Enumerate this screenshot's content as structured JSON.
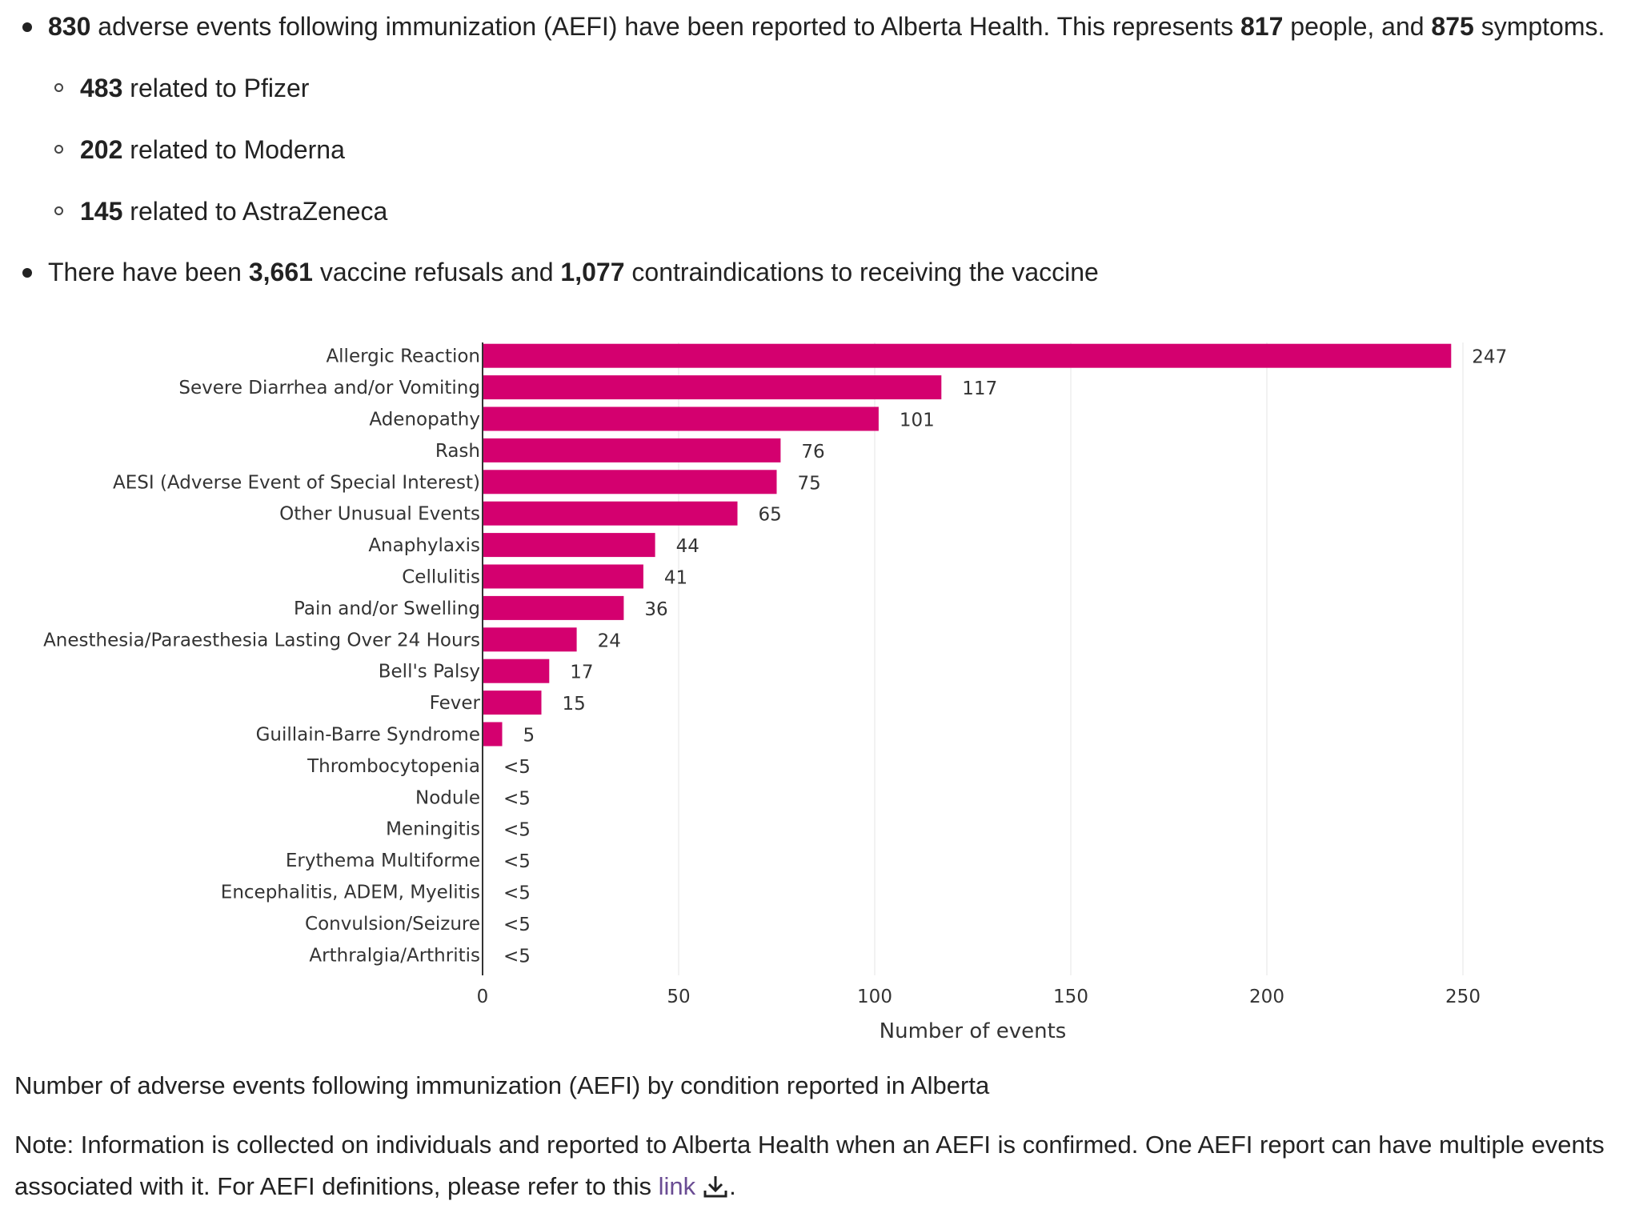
{
  "summary": {
    "line1": {
      "n_events": "830",
      "text_a": " adverse events following immunization (AEFI) have been reported to Alberta Health. This represents ",
      "n_people": "817",
      "text_b": " people, and ",
      "n_symptoms": "875",
      "text_c": " symptoms."
    },
    "sub_items": [
      {
        "count": "483",
        "text": " related to Pfizer"
      },
      {
        "count": "202",
        "text": " related to Moderna"
      },
      {
        "count": "145",
        "text": " related to AstraZeneca"
      }
    ],
    "line2": {
      "text_a": "There have been ",
      "n_refusals": "3,661",
      "text_b": " vaccine refusals and ",
      "n_contra": "1,077",
      "text_c": " contraindications to receiving the vaccine"
    }
  },
  "chart_data": {
    "type": "bar",
    "orientation": "horizontal",
    "title": "",
    "xlabel": "Number of events",
    "ylabel": "",
    "xlim": [
      0,
      260
    ],
    "x_ticks": [
      0,
      50,
      100,
      150,
      200,
      250
    ],
    "grid": true,
    "bar_color": "#d4006f",
    "categories": [
      "Allergic Reaction",
      "Severe Diarrhea and/or Vomiting",
      "Adenopathy",
      "Rash",
      "AESI (Adverse Event of Special Interest)",
      "Other Unusual Events",
      "Anaphylaxis",
      "Cellulitis",
      "Pain and/or Swelling",
      "Anesthesia/Paraesthesia Lasting Over 24 Hours",
      "Bell's Palsy",
      "Fever",
      "Guillain-Barre Syndrome",
      "Thrombocytopenia",
      "Nodule",
      "Meningitis",
      "Erythema Multiforme",
      "Encephalitis, ADEM, Myelitis",
      "Convulsion/Seizure",
      "Arthralgia/Arthritis"
    ],
    "values": [
      247,
      117,
      101,
      76,
      75,
      65,
      44,
      41,
      36,
      24,
      17,
      15,
      5,
      0,
      0,
      0,
      0,
      0,
      0,
      0
    ],
    "data_labels": [
      "247",
      "117",
      "101",
      "76",
      "75",
      "65",
      "44",
      "41",
      "36",
      "24",
      "17",
      "15",
      "5",
      "<5",
      "<5",
      "<5",
      "<5",
      "<5",
      "<5",
      "<5"
    ]
  },
  "caption": "Number of adverse events following immunization (AEFI) by condition reported in Alberta",
  "note": {
    "text": "Note: Information is collected on individuals and reported to Alberta Health when an AEFI is confirmed. One AEFI report can have multiple events associated with it. For AEFI definitions, please refer to this ",
    "link_label": "link",
    "suffix": "."
  },
  "icons": {
    "download": "download-icon"
  }
}
